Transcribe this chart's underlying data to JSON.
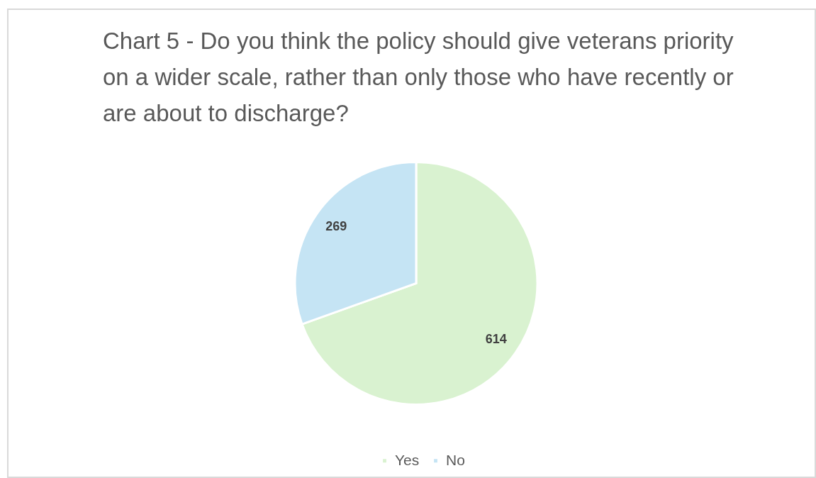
{
  "chart_data": {
    "type": "pie",
    "title": "Chart 5 - Do you think the policy should give veterans priority on a wider scale, rather than only those who have recently or are about to discharge?",
    "categories": [
      "Yes",
      "No"
    ],
    "values": [
      614,
      269
    ],
    "colors": [
      "#d9f2d0",
      "#c5e4f4"
    ],
    "data_labels": true,
    "legend": "bottom"
  }
}
